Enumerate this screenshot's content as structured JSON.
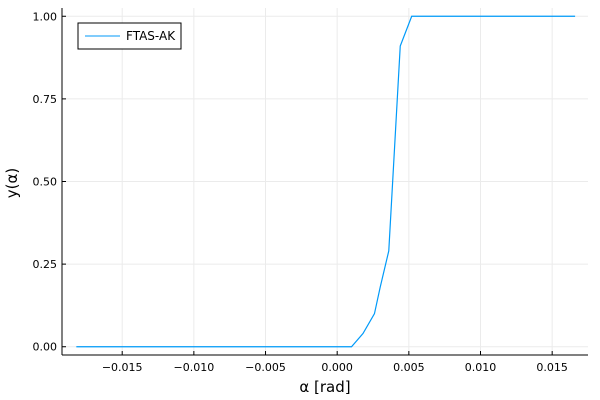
{
  "chart_data": {
    "type": "line",
    "xlabel": "α [rad]",
    "ylabel": "y(α)",
    "xlim": [
      -0.0192,
      0.0175
    ],
    "ylim": [
      -0.025,
      1.025
    ],
    "grid": true,
    "legend_position": "top-left",
    "x_ticks": [
      -0.015,
      -0.01,
      -0.005,
      0.0,
      0.005,
      0.01,
      0.015
    ],
    "x_tick_labels": [
      "−0.015",
      "−0.010",
      "−0.005",
      "0.000",
      "0.005",
      "0.010",
      "0.015"
    ],
    "y_ticks": [
      0.0,
      0.25,
      0.5,
      0.75,
      1.0
    ],
    "y_tick_labels": [
      "0.00",
      "0.25",
      "0.50",
      "0.75",
      "1.00"
    ],
    "series": [
      {
        "name": "FTAS-AK",
        "color": "#009af9",
        "x": [
          -0.0182,
          0.0,
          0.001,
          0.0018,
          0.0026,
          0.003,
          0.0036,
          0.0044,
          0.0052,
          0.01,
          0.0166
        ],
        "y": [
          0.0,
          0.0,
          0.0,
          0.04,
          0.1,
          0.18,
          0.29,
          0.91,
          1.0,
          1.0,
          1.0
        ]
      }
    ]
  }
}
